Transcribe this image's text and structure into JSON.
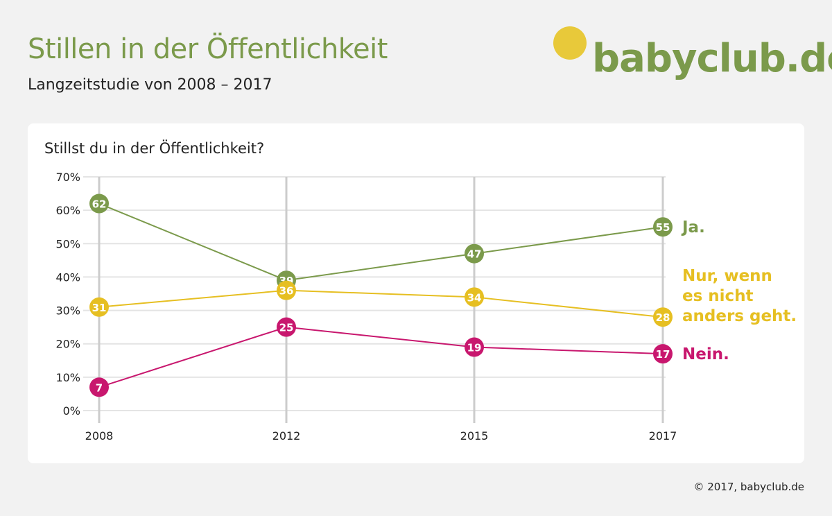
{
  "header": {
    "title": "Stillen in der Öffentlichkeit",
    "subtitle": "Langzeitstudie von 2008 – 2017"
  },
  "logo": {
    "text": "babyclub.de"
  },
  "footer": {
    "copyright": "© 2017, babyclub.de"
  },
  "colors": {
    "ja": "#7b9a4b",
    "nur": "#e6bf22",
    "nein": "#c8176e",
    "grid": "#e4e4e4",
    "vgrid": "#cccccc"
  },
  "chart_data": {
    "type": "line",
    "title": "Stillst du in der Öffentlichkeit?",
    "categories": [
      "2008",
      "2012",
      "2015",
      "2017"
    ],
    "ylim": [
      0,
      70
    ],
    "yticks": [
      "0%",
      "10%",
      "20%",
      "30%",
      "40%",
      "50%",
      "60%",
      "70%"
    ],
    "grid": true,
    "legend": "right, at line ends",
    "series": [
      {
        "name": "Ja.",
        "values": [
          62,
          39,
          47,
          55
        ],
        "color": "#7b9a4b"
      },
      {
        "name": "Nur, wenn es nicht anders geht.",
        "label_lines": [
          "Nur, wenn",
          "es nicht",
          "anders geht."
        ],
        "values": [
          31,
          36,
          34,
          28
        ],
        "color": "#e6bf22"
      },
      {
        "name": "Nein.",
        "values": [
          7,
          25,
          19,
          17
        ],
        "color": "#c8176e"
      }
    ]
  }
}
